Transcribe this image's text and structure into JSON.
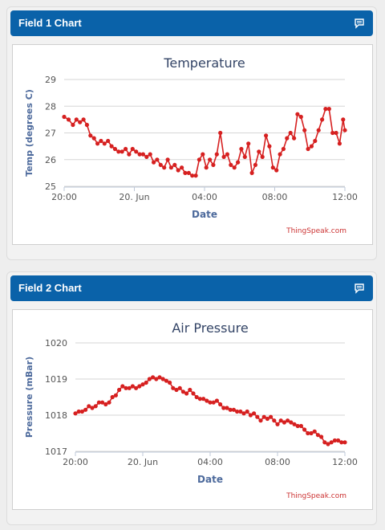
{
  "panels": [
    {
      "header_title": "Field 1 Chart",
      "icon": "comment-icon",
      "credit": "ThingSpeak.com",
      "chart_data": {
        "type": "line",
        "title": "Temperature",
        "xlabel": "Date",
        "ylabel": "Temp (degrees C)",
        "x_tick_labels": [
          "20:00",
          "20. Jun",
          "04:00",
          "08:00",
          "12:00"
        ],
        "y_ticks": [
          25,
          26,
          27,
          28,
          29
        ],
        "ylim": [
          25,
          29
        ],
        "xlim": [
          0,
          16
        ],
        "grid": true,
        "color": "#d62020",
        "series": [
          {
            "x": [
              0,
              0.25,
              0.5,
              0.7,
              0.9,
              1.1,
              1.3,
              1.5,
              1.7,
              1.9,
              2.1,
              2.3,
              2.5,
              2.7,
              2.9,
              3.1,
              3.3,
              3.5,
              3.7,
              3.9,
              4.1,
              4.3,
              4.5,
              4.7,
              4.9,
              5.1,
              5.3,
              5.5,
              5.7,
              5.9,
              6.1,
              6.3,
              6.5,
              6.7,
              6.9,
              7.1,
              7.3,
              7.5,
              7.7,
              7.9,
              8.1,
              8.3,
              8.5,
              8.7,
              8.9,
              9.1,
              9.3,
              9.5,
              9.7,
              9.9,
              10.1,
              10.3,
              10.5,
              10.7,
              10.9,
              11.1,
              11.3,
              11.5,
              11.7,
              11.9,
              12.1,
              12.3,
              12.5,
              12.7,
              12.9,
              13.1,
              13.3,
              13.5,
              13.7,
              13.9,
              14.1,
              14.3,
              14.5,
              14.7,
              14.9,
              15.1,
              15.3,
              15.5,
              15.7,
              15.9,
              16.0
            ],
            "values": [
              27.6,
              27.5,
              27.3,
              27.5,
              27.4,
              27.5,
              27.3,
              26.9,
              26.8,
              26.6,
              26.7,
              26.6,
              26.7,
              26.5,
              26.4,
              26.3,
              26.3,
              26.4,
              26.2,
              26.4,
              26.3,
              26.2,
              26.2,
              26.1,
              26.2,
              25.9,
              26.0,
              25.8,
              25.7,
              26.0,
              25.7,
              25.8,
              25.6,
              25.7,
              25.5,
              25.5,
              25.4,
              25.4,
              26.0,
              26.2,
              25.7,
              26.0,
              25.8,
              26.2,
              27.0,
              26.1,
              26.2,
              25.8,
              25.7,
              25.9,
              26.4,
              26.1,
              26.6,
              25.5,
              25.8,
              26.3,
              26.1,
              26.9,
              26.5,
              25.7,
              25.6,
              26.2,
              26.4,
              26.8,
              27.0,
              26.8,
              27.7,
              27.6,
              27.1,
              26.4,
              26.5,
              26.7,
              27.1,
              27.5,
              27.9,
              27.9,
              27.0,
              27.0,
              26.6,
              27.5,
              27.1
            ]
          }
        ]
      }
    },
    {
      "header_title": "Field 2 Chart",
      "icon": "comment-icon",
      "credit": "ThingSpeak.com",
      "chart_data": {
        "type": "line",
        "title": "Air Pressure",
        "xlabel": "Date",
        "ylabel": "Pressure (mBar)",
        "x_tick_labels": [
          "20:00",
          "20. Jun",
          "04:00",
          "08:00",
          "12:00"
        ],
        "y_ticks": [
          1017,
          1018,
          1019,
          1020
        ],
        "ylim": [
          1017,
          1020
        ],
        "xlim": [
          0,
          16
        ],
        "grid": true,
        "color": "#d62020",
        "series": [
          {
            "x": [
              0,
              0.2,
              0.4,
              0.6,
              0.8,
              1.0,
              1.2,
              1.4,
              1.6,
              1.8,
              2.0,
              2.2,
              2.4,
              2.6,
              2.8,
              3.0,
              3.2,
              3.4,
              3.6,
              3.8,
              4.0,
              4.2,
              4.4,
              4.6,
              4.8,
              5.0,
              5.2,
              5.4,
              5.6,
              5.8,
              6.0,
              6.2,
              6.4,
              6.6,
              6.8,
              7.0,
              7.2,
              7.4,
              7.6,
              7.8,
              8.0,
              8.2,
              8.4,
              8.6,
              8.8,
              9.0,
              9.2,
              9.4,
              9.6,
              9.8,
              10.0,
              10.2,
              10.4,
              10.6,
              10.8,
              11.0,
              11.2,
              11.4,
              11.6,
              11.8,
              12.0,
              12.2,
              12.4,
              12.6,
              12.8,
              13.0,
              13.2,
              13.4,
              13.6,
              13.8,
              14.0,
              14.2,
              14.4,
              14.6,
              14.8,
              15.0,
              15.2,
              15.4,
              15.6,
              15.8,
              16.0
            ],
            "values": [
              1018.05,
              1018.1,
              1018.1,
              1018.15,
              1018.25,
              1018.2,
              1018.25,
              1018.35,
              1018.35,
              1018.3,
              1018.35,
              1018.5,
              1018.55,
              1018.7,
              1018.8,
              1018.75,
              1018.75,
              1018.8,
              1018.75,
              1018.8,
              1018.85,
              1018.9,
              1019.0,
              1019.05,
              1019.0,
              1019.05,
              1019.0,
              1018.95,
              1018.9,
              1018.75,
              1018.7,
              1018.75,
              1018.65,
              1018.6,
              1018.7,
              1018.6,
              1018.5,
              1018.45,
              1018.45,
              1018.4,
              1018.35,
              1018.35,
              1018.4,
              1018.3,
              1018.2,
              1018.2,
              1018.15,
              1018.15,
              1018.1,
              1018.1,
              1018.05,
              1018.1,
              1018.0,
              1018.05,
              1017.95,
              1017.85,
              1017.95,
              1017.9,
              1017.95,
              1017.85,
              1017.75,
              1017.85,
              1017.8,
              1017.85,
              1017.8,
              1017.75,
              1017.7,
              1017.7,
              1017.6,
              1017.5,
              1017.5,
              1017.55,
              1017.45,
              1017.4,
              1017.25,
              1017.2,
              1017.25,
              1017.3,
              1017.3,
              1017.25,
              1017.25
            ]
          }
        ]
      }
    }
  ]
}
